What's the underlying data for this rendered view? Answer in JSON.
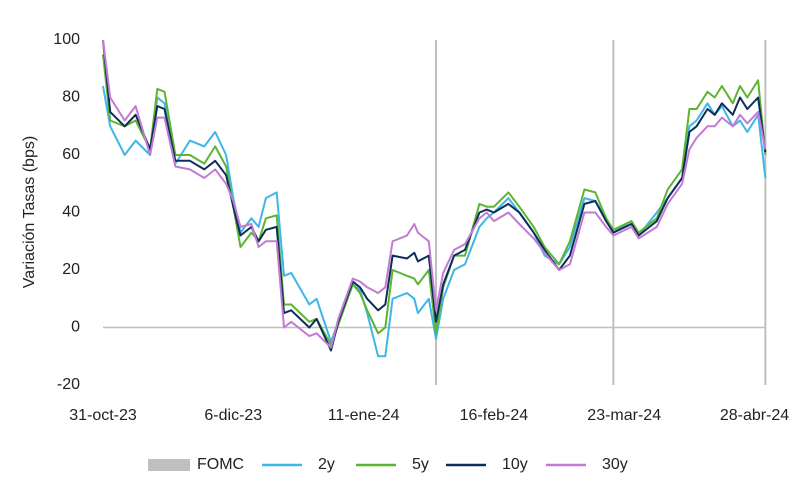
{
  "chart_data": {
    "type": "line",
    "y_label": "Variación Tasas (bps)",
    "x": [
      "2023-10-31",
      "2023-11-02",
      "2023-11-06",
      "2023-11-09",
      "2023-11-13",
      "2023-11-15",
      "2023-11-17",
      "2023-11-20",
      "2023-11-24",
      "2023-11-28",
      "2023-12-01",
      "2023-12-04",
      "2023-12-06",
      "2023-12-08",
      "2023-12-11",
      "2023-12-13",
      "2023-12-15",
      "2023-12-18",
      "2023-12-20",
      "2023-12-22",
      "2023-12-27",
      "2023-12-29",
      "2024-01-02",
      "2024-01-04",
      "2024-01-08",
      "2024-01-10",
      "2024-01-12",
      "2024-01-15",
      "2024-01-17",
      "2024-01-19",
      "2024-01-23",
      "2024-01-25",
      "2024-01-26",
      "2024-01-29",
      "2024-01-31",
      "2024-02-02",
      "2024-02-05",
      "2024-02-08",
      "2024-02-12",
      "2024-02-14",
      "2024-02-16",
      "2024-02-20",
      "2024-02-23",
      "2024-02-27",
      "2024-03-01",
      "2024-03-05",
      "2024-03-08",
      "2024-03-12",
      "2024-03-15",
      "2024-03-18",
      "2024-03-20",
      "2024-03-25",
      "2024-03-27",
      "2024-04-01",
      "2024-04-04",
      "2024-04-08",
      "2024-04-10",
      "2024-04-12",
      "2024-04-15",
      "2024-04-17",
      "2024-04-19",
      "2024-04-22",
      "2024-04-24",
      "2024-04-26",
      "2024-04-29",
      "2024-05-01"
    ],
    "series": [
      {
        "name": "2y",
        "color": "#3fb6e8",
        "values": [
          84,
          70,
          60,
          65,
          60,
          80,
          78,
          57,
          65,
          63,
          68,
          60,
          45,
          33,
          38,
          35,
          45,
          47,
          18,
          19,
          8,
          10,
          -5,
          2,
          15,
          13,
          5,
          -10,
          -10,
          10,
          12,
          10,
          5,
          10,
          -4,
          10,
          20,
          22,
          35,
          38,
          40,
          45,
          40,
          33,
          25,
          22,
          28,
          45,
          44,
          38,
          33,
          37,
          32,
          40,
          45,
          52,
          70,
          72,
          78,
          74,
          77,
          70,
          72,
          68,
          74,
          52
        ]
      },
      {
        "name": "5y",
        "color": "#5cb531",
        "values": [
          95,
          72,
          70,
          72,
          62,
          83,
          82,
          60,
          60,
          57,
          63,
          56,
          42,
          28,
          33,
          30,
          38,
          39,
          8,
          8,
          2,
          3,
          -6,
          1,
          15,
          12,
          6,
          -2,
          0,
          20,
          18,
          17,
          15,
          20,
          -2,
          14,
          25,
          25,
          43,
          42,
          42,
          47,
          42,
          35,
          28,
          22,
          30,
          48,
          47,
          38,
          34,
          37,
          33,
          38,
          48,
          55,
          76,
          76,
          82,
          80,
          84,
          78,
          84,
          80,
          86,
          60
        ]
      },
      {
        "name": "10y",
        "color": "#0d2d5a",
        "values": [
          100,
          75,
          70,
          74,
          62,
          77,
          76,
          58,
          58,
          55,
          58,
          53,
          42,
          32,
          35,
          30,
          34,
          35,
          5,
          6,
          0,
          3,
          -8,
          2,
          16,
          14,
          10,
          6,
          8,
          25,
          24,
          26,
          23,
          25,
          2,
          15,
          25,
          27,
          40,
          41,
          40,
          43,
          40,
          33,
          27,
          20,
          25,
          43,
          44,
          37,
          33,
          36,
          32,
          37,
          45,
          52,
          68,
          70,
          76,
          74,
          78,
          74,
          80,
          76,
          80,
          61
        ]
      },
      {
        "name": "30y",
        "color": "#c27bd2",
        "values": [
          100,
          80,
          72,
          77,
          60,
          73,
          73,
          56,
          55,
          52,
          55,
          50,
          44,
          35,
          36,
          28,
          30,
          30,
          0,
          2,
          -3,
          -2,
          -7,
          3,
          17,
          16,
          14,
          12,
          14,
          30,
          32,
          36,
          33,
          30,
          6,
          19,
          27,
          29,
          38,
          40,
          37,
          40,
          36,
          31,
          26,
          20,
          22,
          40,
          40,
          35,
          32,
          35,
          31,
          35,
          43,
          50,
          62,
          66,
          70,
          70,
          73,
          70,
          74,
          71,
          75,
          62
        ]
      }
    ],
    "fomc": {
      "name": "FOMC",
      "color": "#bfbfbf",
      "dates": [
        "2024-01-31",
        "2024-03-20",
        "2024-05-01"
      ]
    },
    "xlim": [
      "2023-10-31",
      "2024-05-02"
    ],
    "xticks": [
      {
        "value": "2023-10-31",
        "label": "31-oct-23"
      },
      {
        "value": "2023-12-06",
        "label": "6-dic-23"
      },
      {
        "value": "2024-01-11",
        "label": "11-ene-24"
      },
      {
        "value": "2024-02-16",
        "label": "16-feb-24"
      },
      {
        "value": "2024-03-23",
        "label": "23-mar-24"
      },
      {
        "value": "2024-04-28",
        "label": "28-abr-24"
      }
    ],
    "ylim": [
      -20,
      100
    ],
    "yticks": [
      -20,
      0,
      20,
      40,
      60,
      80,
      100
    ],
    "grid": false
  }
}
